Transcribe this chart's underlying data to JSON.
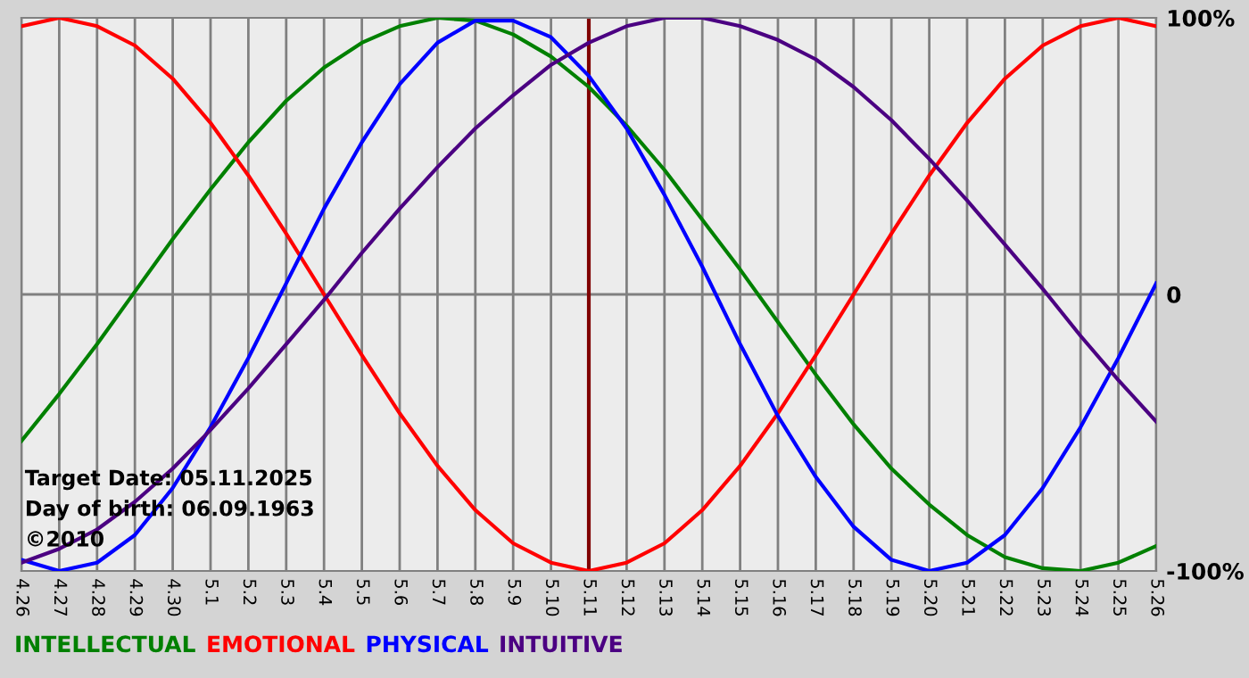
{
  "chart_data": {
    "type": "line",
    "categories": [
      "4.26",
      "4.27",
      "4.28",
      "4.29",
      "4.30",
      "5.1",
      "5.2",
      "5.3",
      "5.4",
      "5.5",
      "5.6",
      "5.7",
      "5.8",
      "5.9",
      "5.10",
      "5.11",
      "5.12",
      "5.13",
      "5.14",
      "5.15",
      "5.16",
      "5.17",
      "5.18",
      "5.19",
      "5.20",
      "5.21",
      "5.22",
      "5.23",
      "5.24",
      "5.25",
      "5.26"
    ],
    "series": [
      {
        "name": "INTELLECTUAL",
        "color": "#008000",
        "values": [
          -53,
          -36,
          -18,
          1,
          20,
          38,
          55,
          70,
          82,
          91,
          97,
          100,
          99,
          94,
          86,
          75,
          61,
          45,
          27,
          9,
          -10,
          -29,
          -47,
          -63,
          -76,
          -87,
          -95,
          -99,
          -100,
          -97,
          -91
        ]
      },
      {
        "name": "EMOTIONAL",
        "color": "#ff0000",
        "values": [
          97,
          100,
          97,
          90,
          78,
          62,
          43,
          22,
          0,
          -22,
          -43,
          -62,
          -78,
          -90,
          -97,
          -100,
          -97,
          -90,
          -78,
          -62,
          -43,
          -22,
          0,
          22,
          43,
          62,
          78,
          90,
          97,
          100,
          97
        ]
      },
      {
        "name": "PHYSICAL",
        "color": "#0000ff",
        "values": [
          -96,
          -100,
          -97,
          -87,
          -70,
          -48,
          -23,
          4,
          31,
          55,
          76,
          91,
          99,
          99,
          93,
          79,
          60,
          36,
          10,
          -18,
          -44,
          -66,
          -84,
          -96,
          -100,
          -97,
          -87,
          -70,
          -48,
          -23,
          4
        ]
      },
      {
        "name": "INTUITIVE",
        "color": "#4b0082",
        "values": [
          -97,
          -92,
          -85,
          -75,
          -63,
          -49,
          -34,
          -18,
          -2,
          15,
          31,
          46,
          60,
          72,
          83,
          91,
          97,
          100,
          100,
          97,
          92,
          85,
          75,
          63,
          49,
          34,
          18,
          2,
          -15,
          -31,
          -46
        ]
      }
    ],
    "ylim": [
      -100,
      100
    ],
    "yticks": [
      {
        "value": 100,
        "label": "100%"
      },
      0,
      {
        "value": -100,
        "label": "-100%"
      }
    ],
    "grid": "x",
    "legend": "bottom",
    "ref_lines": [
      {
        "axis": "y",
        "value": 0,
        "color": "#808080"
      },
      {
        "axis": "x",
        "value": "5.11",
        "color": "#800000"
      }
    ],
    "annotations": [
      "Target Date: 05.11.2025",
      "Day of birth: 06.09.1963",
      "©2010"
    ]
  }
}
